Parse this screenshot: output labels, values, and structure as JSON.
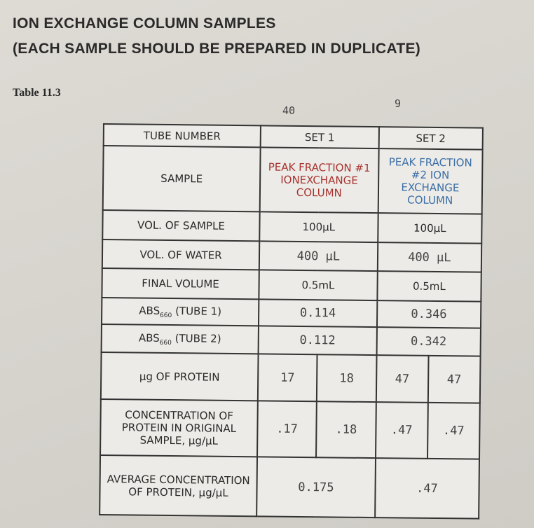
{
  "header": {
    "title_line1": "ION EXCHANGE COLUMN SAMPLES",
    "title_line2": "(EACH SAMPLE SHOULD BE PREPARED IN DUPLICATE)"
  },
  "caption": "Table 11.3",
  "annotations": [
    "40",
    "9"
  ],
  "table": {
    "header": [
      "TUBE NUMBER",
      "SET 1",
      "SET 2"
    ],
    "rows": [
      {
        "label": "SAMPLE",
        "set1": "PEAK FRACTION #1 IONEXCHANGE COLUMN",
        "set2": "PEAK FRACTION #2 ION EXCHANGE COLUMN"
      },
      {
        "label": "VOL. OF SAMPLE",
        "set1": "100µL",
        "set2": "100µL"
      },
      {
        "label": "VOL. OF WATER",
        "set1": "400 µL",
        "set2": "400 µL"
      },
      {
        "label": "FINAL VOLUME",
        "set1": "0.5mL",
        "set2": "0.5mL"
      },
      {
        "label": {
          "text": "ABS",
          "subscript": "660",
          "suffix": "(TUBE 1)"
        },
        "set1": "0.114",
        "set2": "0.346"
      },
      {
        "label": {
          "text": "ABS",
          "subscript": "660",
          "suffix": "(TUBE 2)"
        },
        "set1": "0.112",
        "set2": "0.342"
      },
      {
        "label": "µg OF PROTEIN",
        "set1": [
          "17",
          "18"
        ],
        "set2": [
          "47",
          "47"
        ]
      },
      {
        "label": "CONCENTRATION OF PROTEIN IN ORIGINAL SAMPLE, µg/µL",
        "set1": [
          ".17",
          ".18"
        ],
        "set2": [
          ".47",
          ".47"
        ]
      },
      {
        "label": "AVERAGE CONCENTRATION OF PROTEIN, µg/µL",
        "set1": "0.175",
        "set2": ".47"
      }
    ]
  }
}
